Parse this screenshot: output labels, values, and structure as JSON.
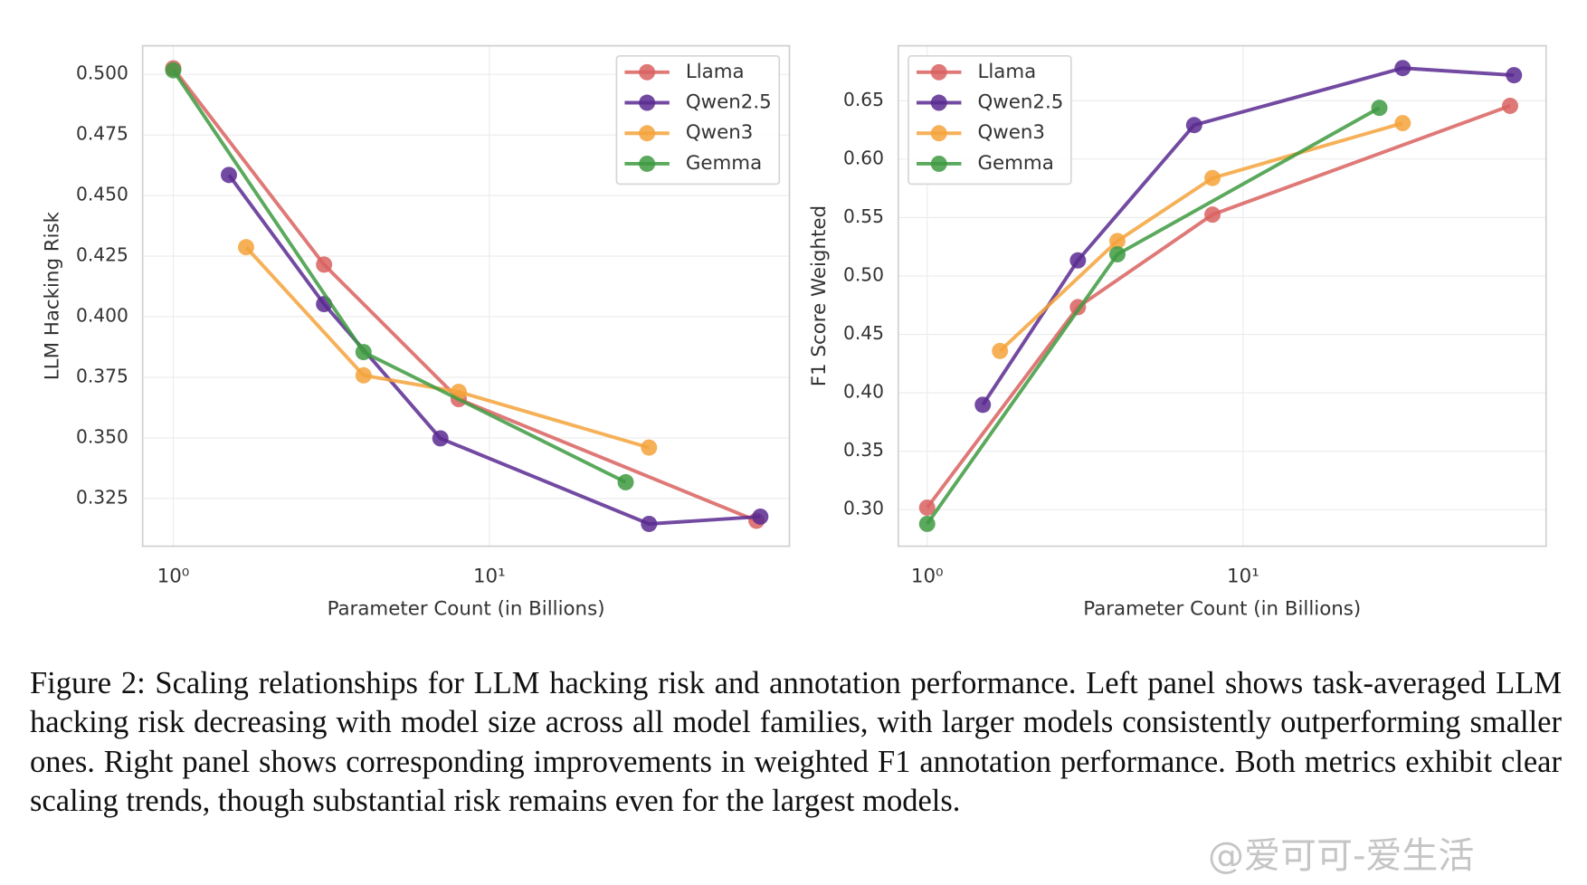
{
  "chart_data": [
    {
      "type": "line",
      "xlabel": "Parameter Count (in Billions)",
      "ylabel": "LLM Hacking Risk",
      "xscale": "log",
      "xlim": [
        0.8,
        89
      ],
      "xticks": [
        {
          "value": 1,
          "label": "10⁰"
        },
        {
          "value": 10,
          "label": "10¹"
        }
      ],
      "ylim": [
        0.3053,
        0.5118
      ],
      "yticks": [
        0.325,
        {
          "value": 0.35,
          "label": "0.350"
        },
        0.375,
        {
          "value": 0.4,
          "label": "0.400"
        },
        0.425,
        {
          "value": 0.45,
          "label": "0.450"
        },
        0.475,
        {
          "value": 0.5,
          "label": "0.500"
        }
      ],
      "grid": true,
      "legend": "upper right",
      "series": [
        {
          "name": "Llama",
          "color": "#d9625f",
          "x": [
            1,
            3,
            8,
            70
          ],
          "values": [
            0.5025,
            0.4215,
            0.366,
            0.3158
          ]
        },
        {
          "name": "Qwen2.5",
          "color": "#5b2a91",
          "x": [
            1.5,
            3,
            7,
            32,
            72
          ],
          "values": [
            0.4585,
            0.4052,
            0.3498,
            0.3145,
            0.3175
          ]
        },
        {
          "name": "Qwen3",
          "color": "#f5a33b",
          "x": [
            1.7,
            4,
            8,
            32
          ],
          "values": [
            0.4287,
            0.3758,
            0.369,
            0.346
          ]
        },
        {
          "name": "Gemma",
          "color": "#3e9a41",
          "x": [
            1,
            4,
            27
          ],
          "values": [
            0.5017,
            0.3854,
            0.3317
          ]
        }
      ]
    },
    {
      "type": "line",
      "xlabel": "Parameter Count (in Billions)",
      "ylabel": "F1 Score Weighted",
      "xscale": "log",
      "xlim": [
        0.81,
        91
      ],
      "xticks": [
        {
          "value": 1,
          "label": "10⁰"
        },
        {
          "value": 10,
          "label": "10¹"
        }
      ],
      "ylim": [
        0.2687,
        0.697
      ],
      "yticks": [
        {
          "value": 0.3,
          "label": "0.30"
        },
        0.35,
        {
          "value": 0.4,
          "label": "0.40"
        },
        0.45,
        {
          "value": 0.5,
          "label": "0.50"
        },
        0.55,
        {
          "value": 0.6,
          "label": "0.60"
        },
        0.65
      ],
      "grid": true,
      "legend": "upper left",
      "series": [
        {
          "name": "Llama",
          "color": "#d9625f",
          "x": [
            1,
            3,
            8,
            70
          ],
          "values": [
            0.3017,
            0.4733,
            0.5525,
            0.6456
          ]
        },
        {
          "name": "Qwen2.5",
          "color": "#5b2a91",
          "x": [
            1.5,
            3,
            7,
            32,
            72
          ],
          "values": [
            0.3897,
            0.5133,
            0.6291,
            0.6779,
            0.6718
          ]
        },
        {
          "name": "Qwen3",
          "color": "#f5a33b",
          "x": [
            1.7,
            4,
            8,
            32
          ],
          "values": [
            0.4358,
            0.5299,
            0.5838,
            0.6308
          ]
        },
        {
          "name": "Gemma",
          "color": "#3e9a41",
          "x": [
            1,
            4,
            27
          ],
          "values": [
            0.2878,
            0.5185,
            0.6439
          ]
        }
      ]
    }
  ],
  "caption": "Figure 2: Scaling relationships for LLM hacking risk and annotation performance. Left panel shows task-averaged LLM hacking risk decreasing with model size across all model families, with larger models consistently outperforming smaller ones. Right panel shows corresponding improvements in weighted F1 annotation performance. Both metrics exhibit clear scaling trends, though substantial risk remains even for the largest models.",
  "watermark": "@爱可可-爱生活"
}
